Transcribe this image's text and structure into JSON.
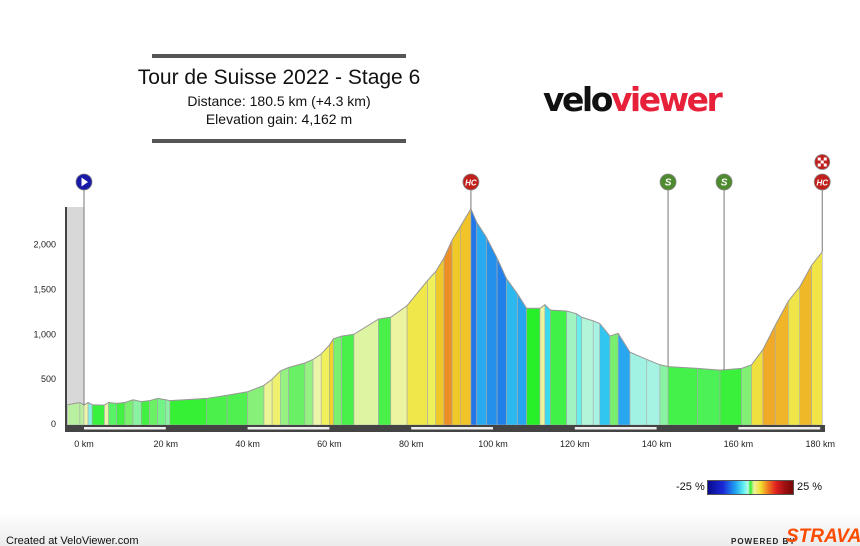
{
  "header": {
    "title": "Tour de Suisse 2022 - Stage 6",
    "distance": "Distance: 180.5 km (+4.3 km)",
    "elevation_gain": "Elevation gain: 4,162 m",
    "logo_part1": "velo",
    "logo_part2": "viewer"
  },
  "legend": {
    "min_label": "-25 %",
    "max_label": "25 %"
  },
  "footer": {
    "created": "Created at VeloViewer.com",
    "powered_by": "POWERED BY",
    "strava": "STRAVA"
  },
  "colors": {
    "logo_red": "#e8213b",
    "strava_orange": "#fc4c02",
    "hc_marker": "#c0201c",
    "sprint_marker": "#4e8a2e",
    "start_marker": "#1a1aa8"
  },
  "chart_data": {
    "type": "area",
    "title": "",
    "xlabel": "",
    "ylabel": "",
    "xlim": [
      -4,
      181
    ],
    "ylim": [
      0,
      2450
    ],
    "x_ticks": [
      "0 km",
      "20 km",
      "40 km",
      "60 km",
      "80 km",
      "100 km",
      "120 km",
      "140 km",
      "160 km",
      "180 km"
    ],
    "x_tick_values": [
      0,
      20,
      40,
      60,
      80,
      100,
      120,
      140,
      160,
      180
    ],
    "y_ticks": [
      "0",
      "500",
      "1,000",
      "1,500",
      "2,000"
    ],
    "y_tick_values": [
      0,
      500,
      1000,
      1500,
      2000
    ],
    "grid": false,
    "fill": "colored by gradient",
    "x": [
      -4,
      -1,
      0,
      1,
      2,
      5,
      6,
      8,
      10,
      12,
      14,
      16,
      18,
      20,
      21,
      30,
      35,
      40,
      44,
      46,
      48,
      50,
      54,
      56,
      58,
      60,
      61,
      63,
      66,
      72,
      75,
      79,
      84,
      86,
      88,
      90,
      92,
      94.6,
      96,
      98.4,
      101,
      103.3,
      106,
      108.2,
      111.5,
      112.7,
      114,
      118,
      120.4,
      121.7,
      124.5,
      126.1,
      128.6,
      130.6,
      133.5,
      137.6,
      140.8,
      142.8,
      150,
      155.5,
      160.8,
      163.2,
      166,
      169,
      172.2,
      175,
      177.9,
      180.5
    ],
    "y": [
      215,
      240,
      210,
      240,
      215,
      210,
      240,
      230,
      240,
      270,
      250,
      260,
      285,
      270,
      260,
      285,
      320,
      360,
      430,
      500,
      590,
      630,
      680,
      720,
      780,
      880,
      950,
      980,
      1000,
      1170,
      1190,
      1320,
      1600,
      1700,
      1850,
      2050,
      2200,
      2400,
      2250,
      2080,
      1850,
      1620,
      1450,
      1290,
      1290,
      1330,
      1270,
      1260,
      1230,
      1190,
      1150,
      1120,
      980,
      1010,
      800,
      720,
      660,
      640,
      620,
      600,
      620,
      660,
      830,
      1100,
      1370,
      1530,
      1770,
      1920
    ],
    "markers": [
      {
        "km": 0,
        "type": "start",
        "label": ""
      },
      {
        "km": 94.6,
        "type": "climb",
        "label": "HC"
      },
      {
        "km": 142.8,
        "type": "sprint",
        "label": "S"
      },
      {
        "km": 156.5,
        "type": "sprint",
        "label": "S"
      },
      {
        "km": 180.5,
        "type": "climb",
        "label": "HC"
      },
      {
        "km": 180.5,
        "type": "finish",
        "label": ""
      }
    ],
    "gradient_scale": {
      "min": -25,
      "max": 25,
      "unit": "%"
    }
  }
}
